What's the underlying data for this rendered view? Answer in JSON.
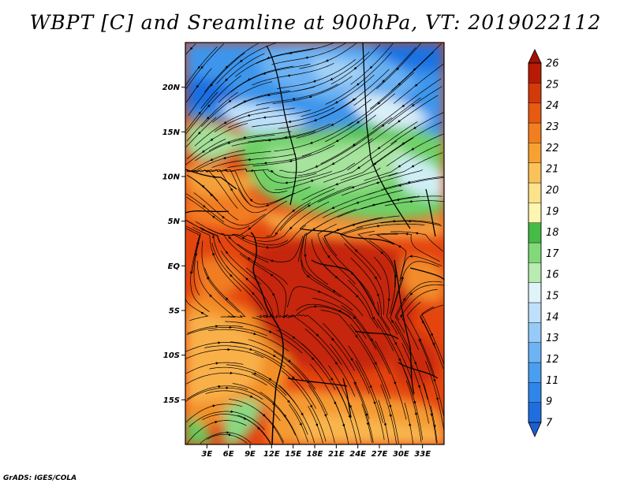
{
  "title": "WBPT [C] and Sreamline at 900hPa, VT: 2019022112",
  "credit": "GrADS: IGES/COLA",
  "map": {
    "variable": "Wet-bulb potential temperature",
    "units": "C",
    "level": "900hPa",
    "valid_time": "2019022112",
    "lat_range": [
      -20,
      25
    ],
    "lon_range": [
      0,
      36
    ],
    "lat_ticks": [
      {
        "lat": 20,
        "label": "20N"
      },
      {
        "lat": 15,
        "label": "15N"
      },
      {
        "lat": 10,
        "label": "10N"
      },
      {
        "lat": 5,
        "label": "5N"
      },
      {
        "lat": 0,
        "label": "EQ"
      },
      {
        "lat": -5,
        "label": "5S"
      },
      {
        "lat": -10,
        "label": "10S"
      },
      {
        "lat": -15,
        "label": "15S"
      }
    ],
    "lon_ticks": [
      {
        "lon": 3,
        "label": "3E"
      },
      {
        "lon": 6,
        "label": "6E"
      },
      {
        "lon": 9,
        "label": "9E"
      },
      {
        "lon": 12,
        "label": "12E"
      },
      {
        "lon": 15,
        "label": "15E"
      },
      {
        "lon": 18,
        "label": "18E"
      },
      {
        "lon": 21,
        "label": "21E"
      },
      {
        "lon": 24,
        "label": "24E"
      },
      {
        "lon": 27,
        "label": "27E"
      },
      {
        "lon": 30,
        "label": "30E"
      },
      {
        "lon": 33,
        "label": "33E"
      }
    ]
  },
  "colorbar": {
    "labels": [
      "7",
      "9",
      "11",
      "12",
      "13",
      "14",
      "15",
      "16",
      "17",
      "18",
      "19",
      "20",
      "21",
      "22",
      "23",
      "24",
      "25",
      "26"
    ],
    "colors": [
      "#1e6ee0",
      "#2f86ea",
      "#4a9ef0",
      "#6db4f5",
      "#96cbf8",
      "#bfe0fa",
      "#e0f3f8",
      "#b8ecb0",
      "#82d97a",
      "#46bb46",
      "#fff5b0",
      "#fde28a",
      "#fbc25a",
      "#f8a133",
      "#f27f1f",
      "#e65a12",
      "#d23a0a",
      "#b81a05"
    ],
    "under_color": "#1a5fd0",
    "over_color": "#a01204"
  }
}
